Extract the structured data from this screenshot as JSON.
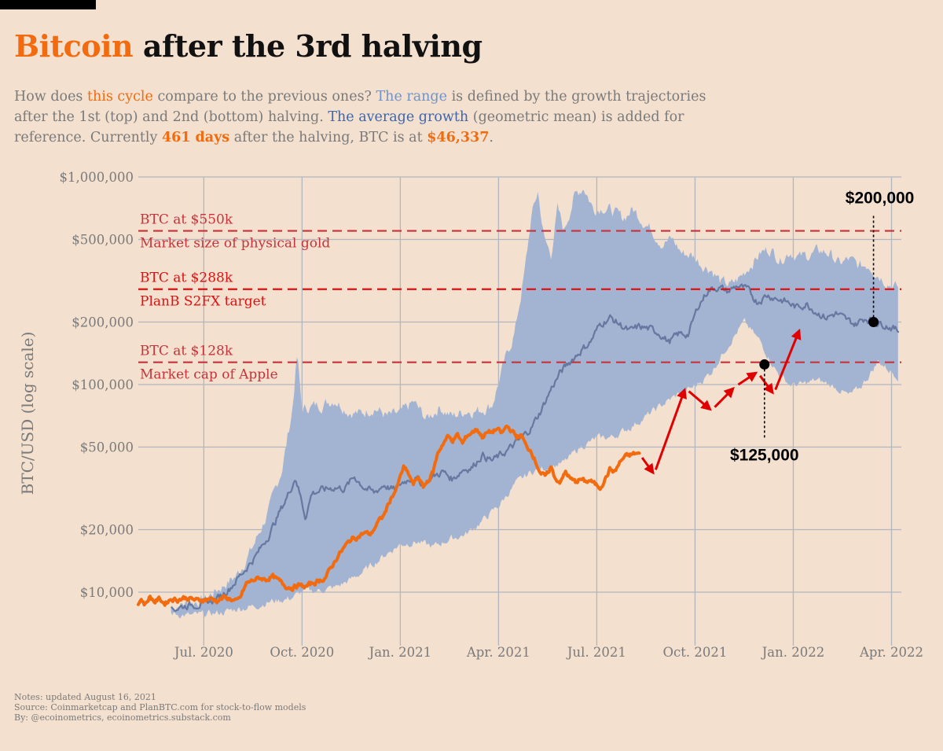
{
  "title": {
    "highlight": "Bitcoin",
    "rest": "after the 3rd halving"
  },
  "subtitle": {
    "p1": "How does ",
    "this_cycle": "this cycle",
    "p2": " compare to the previous ones? ",
    "the_range": "The range",
    "p3": " is defined by the growth trajectories after the 1st (top) and 2nd (bottom) halving. ",
    "avg_growth": "The average growth",
    "p4": " (geometric mean) is added for reference. Currently ",
    "days": "461 days",
    "p5": " after the halving, BTC is at ",
    "price": "$46,337",
    "p6": "."
  },
  "notes": [
    "Notes: updated August 16, 2021",
    "Source: Coinmarketcap and PlanBTC.com for stock-to-flow models",
    "By: @ecoinometrics, ecoinometrics.substack.com"
  ],
  "chart_data": {
    "type": "line",
    "title": "Bitcoin after the 3rd halving",
    "xlabel": "",
    "ylabel": "BTC/USD (log scale)",
    "y_scale": "log",
    "ylim": [
      7500,
      1000000
    ],
    "x_unit": "months since May 2020",
    "xlim": [
      0,
      23.3
    ],
    "y_ticks": [
      {
        "value": 10000,
        "label": "$10,000"
      },
      {
        "value": 20000,
        "label": "$20,000"
      },
      {
        "value": 50000,
        "label": "$50,000"
      },
      {
        "value": 100000,
        "label": "$100,000"
      },
      {
        "value": 200000,
        "label": "$200,000"
      },
      {
        "value": 500000,
        "label": "$500,000"
      },
      {
        "value": 1000000,
        "label": "$1,000,000"
      }
    ],
    "x_ticks": [
      {
        "value": 2,
        "label": "Jul. 2020"
      },
      {
        "value": 5,
        "label": "Oct. 2020"
      },
      {
        "value": 8,
        "label": "Jan. 2021"
      },
      {
        "value": 11,
        "label": "Apr. 2021"
      },
      {
        "value": 14,
        "label": "Jul. 2021"
      },
      {
        "value": 17,
        "label": "Oct. 2021"
      },
      {
        "value": 20,
        "label": "Jan. 2022"
      },
      {
        "value": 23,
        "label": "Apr. 2022"
      }
    ],
    "reference_lines": [
      {
        "value": 550000,
        "label_above": "BTC at $550k",
        "label_below": "Market size of physical gold",
        "color": "#c8323a"
      },
      {
        "value": 288000,
        "label_above": "BTC at $288k",
        "label_below": "PlanB S2FX target",
        "color": "#e01010"
      },
      {
        "value": 128000,
        "label_above": "BTC at $128k",
        "label_below": "Market cap of Apple",
        "color": "#c8323a"
      }
    ],
    "series": [
      {
        "name": "This cycle (3rd halving)",
        "color": "#f26b0f",
        "x": [
          0,
          0.1,
          0.2,
          0.35,
          0.5,
          0.65,
          0.8,
          1.0,
          1.2,
          1.4,
          1.6,
          1.8,
          2.0,
          2.2,
          2.4,
          2.6,
          2.8,
          3.0,
          3.1,
          3.3,
          3.5,
          3.7,
          3.9,
          4.1,
          4.3,
          4.5,
          4.7,
          4.9,
          5.1,
          5.3,
          5.5,
          5.7,
          5.9,
          6.1,
          6.3,
          6.5,
          6.7,
          6.9,
          7.1,
          7.3,
          7.5,
          7.7,
          7.9,
          8.1,
          8.25,
          8.4,
          8.55,
          8.7,
          8.85,
          9.0,
          9.15,
          9.3,
          9.45,
          9.6,
          9.75,
          9.9,
          10.05,
          10.2,
          10.35,
          10.5,
          10.65,
          10.8,
          10.95,
          11.1,
          11.25,
          11.4,
          11.55,
          11.7,
          11.85,
          12.0,
          12.15,
          12.3,
          12.45,
          12.6,
          12.75,
          12.9,
          13.05,
          13.2,
          13.35,
          13.5,
          13.65,
          13.8,
          13.95,
          14.1,
          14.25,
          14.4,
          14.55,
          14.7,
          14.85,
          15.0,
          15.15,
          15.3
        ],
        "values": [
          8900,
          9300,
          8700,
          9500,
          9000,
          9300,
          8800,
          9300,
          9200,
          9400,
          9300,
          9100,
          9200,
          9300,
          9100,
          9400,
          9300,
          9000,
          9300,
          11000,
          11400,
          11700,
          11500,
          11900,
          11300,
          10700,
          10500,
          10800,
          10600,
          11000,
          11300,
          11700,
          13200,
          15000,
          16500,
          18000,
          18500,
          19300,
          19000,
          21500,
          23500,
          28000,
          32000,
          40000,
          37000,
          33000,
          36000,
          32000,
          34500,
          38000,
          47000,
          52000,
          56000,
          54000,
          57000,
          52000,
          57000,
          59000,
          61000,
          56000,
          58500,
          59000,
          61000,
          58000,
          63000,
          60000,
          56000,
          57000,
          50000,
          48000,
          42000,
          37000,
          36000,
          40000,
          35000,
          34000,
          38000,
          35000,
          34000,
          35000,
          34000,
          34500,
          33000,
          32000,
          35000,
          39000,
          38000,
          42000,
          45000,
          45500,
          46500,
          46337
        ]
      },
      {
        "name": "The average growth (geometric mean)",
        "color": "#6678a0",
        "x": [
          1.0,
          1.3,
          1.6,
          2.0,
          2.4,
          2.8,
          3.2,
          3.6,
          4.0,
          4.3,
          4.6,
          4.8,
          4.95,
          5.1,
          5.3,
          5.6,
          6.0,
          6.3,
          6.6,
          6.9,
          7.2,
          7.5,
          7.8,
          8.1,
          8.4,
          8.7,
          9.0,
          9.3,
          9.6,
          9.9,
          10.2,
          10.5,
          10.8,
          11.1,
          11.4,
          11.7,
          12.0,
          12.3,
          12.6,
          12.9,
          13.2,
          13.5,
          13.8,
          14.1,
          14.4,
          14.7,
          15.0,
          15.3,
          15.6,
          15.9,
          16.2,
          16.5,
          16.8,
          17.1,
          17.4,
          17.7,
          18.0,
          18.3,
          18.6,
          18.9,
          19.2,
          19.5,
          19.8,
          20.1,
          20.4,
          20.7,
          21.0,
          21.3,
          21.6,
          21.9,
          22.2,
          22.5,
          22.8,
          23.1,
          23.25
        ],
        "values": [
          8200,
          8500,
          8700,
          8800,
          9300,
          10500,
          12500,
          15000,
          19000,
          24000,
          30000,
          36000,
          29000,
          23000,
          30000,
          31000,
          32000,
          31500,
          36000,
          32000,
          30000,
          33000,
          31000,
          34000,
          36000,
          33000,
          36000,
          38000,
          35000,
          39000,
          40000,
          46000,
          43000,
          46000,
          50000,
          55000,
          62000,
          75000,
          95000,
          115000,
          130000,
          145000,
          160000,
          195000,
          210000,
          195000,
          180000,
          190000,
          185000,
          178000,
          160000,
          175000,
          175000,
          240000,
          285000,
          295000,
          280000,
          300000,
          285000,
          250000,
          270000,
          260000,
          250000,
          235000,
          245000,
          225000,
          210000,
          220000,
          205000,
          195000,
          210000,
          200000,
          195000,
          185000,
          180000
        ]
      },
      {
        "name": "The range - top (1st halving)",
        "color": "#a3b4d3",
        "x": [
          1.0,
          2.0,
          3.0,
          3.5,
          4.0,
          4.4,
          4.7,
          4.85,
          5.0,
          5.2,
          5.6,
          6.0,
          6.4,
          6.8,
          7.2,
          7.6,
          8.0,
          8.4,
          8.8,
          9.2,
          9.6,
          10.0,
          10.4,
          10.8,
          11.2,
          11.5,
          11.8,
          12.0,
          12.2,
          12.4,
          12.6,
          12.8,
          13.0,
          13.3,
          13.6,
          13.9,
          14.2,
          14.5,
          14.8,
          15.1,
          15.4,
          15.7,
          16.0,
          16.3,
          16.6,
          16.9,
          17.2,
          17.5,
          17.8,
          18.1,
          18.4,
          18.7,
          19.0,
          19.3,
          19.6,
          19.9,
          20.2,
          20.5,
          20.8,
          21.1,
          21.4,
          21.7,
          22.0,
          22.3,
          22.6,
          22.9,
          23.2
        ],
        "values": [
          8500,
          9200,
          12000,
          16500,
          25000,
          40000,
          75000,
          140000,
          75000,
          78000,
          80000,
          85000,
          75000,
          72000,
          78000,
          70000,
          72000,
          82000,
          68000,
          78000,
          70000,
          75000,
          75000,
          80000,
          130000,
          180000,
          350000,
          640000,
          850000,
          500000,
          420000,
          700000,
          550000,
          800000,
          900000,
          700000,
          720000,
          680000,
          630000,
          700000,
          620000,
          550000,
          480000,
          500000,
          430000,
          420000,
          380000,
          360000,
          310000,
          300000,
          330000,
          380000,
          430000,
          450000,
          400000,
          440000,
          410000,
          420000,
          440000,
          430000,
          380000,
          400000,
          370000,
          380000,
          340000,
          310000,
          290000
        ]
      },
      {
        "name": "The range - bottom (2nd halving)",
        "color": "#a3b4d3",
        "x": [
          1.0,
          1.6,
          2.0,
          2.6,
          3.0,
          3.6,
          4.0,
          4.6,
          5.0,
          5.5,
          6.0,
          6.5,
          7.0,
          7.5,
          8.0,
          8.5,
          9.0,
          9.5,
          10.0,
          10.5,
          11.0,
          11.5,
          12.0,
          12.5,
          13.0,
          13.5,
          14.0,
          14.5,
          15.0,
          15.5,
          16.0,
          16.5,
          17.0,
          17.5,
          18.0,
          18.5,
          19.0,
          19.5,
          19.9,
          20.3,
          20.7,
          21.1,
          21.4,
          21.7,
          22.0,
          22.3,
          22.6,
          22.9,
          23.2
        ],
        "values": [
          7900,
          7700,
          7800,
          8000,
          8300,
          8600,
          9000,
          9300,
          10000,
          10200,
          10500,
          11500,
          13000,
          15000,
          17000,
          17500,
          16500,
          18000,
          19000,
          22000,
          26000,
          33000,
          38000,
          40000,
          42000,
          50000,
          55000,
          56000,
          62000,
          70000,
          80000,
          90000,
          98000,
          115000,
          155000,
          200000,
          160000,
          115000,
          100000,
          100000,
          105000,
          100000,
          95000,
          88000,
          95000,
          110000,
          130000,
          118000,
          110000
        ]
      }
    ],
    "projection": {
      "color": "#e00000",
      "points": [
        {
          "x": 15.3,
          "value": 46337
        },
        {
          "x": 15.75,
          "value": 37000
        },
        {
          "x": 16.7,
          "value": 96000
        },
        {
          "x": 17.5,
          "value": 75000
        },
        {
          "x": 18.2,
          "value": 97000
        },
        {
          "x": 18.9,
          "value": 115000
        },
        {
          "x": 19.4,
          "value": 90000
        },
        {
          "x": 20.2,
          "value": 185000
        }
      ]
    },
    "callouts": [
      {
        "x": 19.12,
        "value": 125000,
        "label": "$125,000",
        "label_position": "below"
      },
      {
        "x": 22.45,
        "value": 200000,
        "label": "$200,000",
        "label_position": "above"
      }
    ]
  }
}
